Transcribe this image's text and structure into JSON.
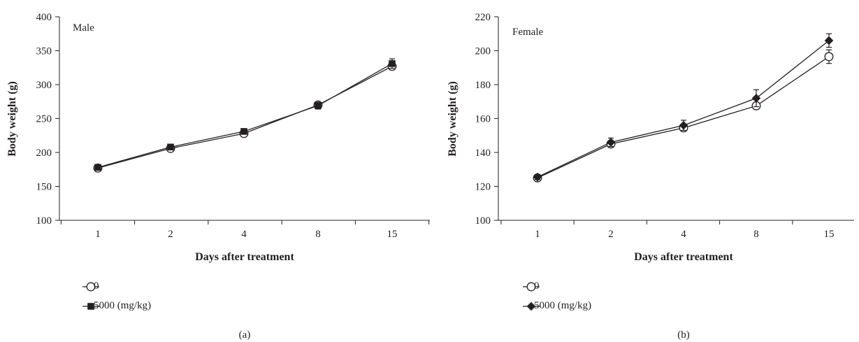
{
  "chart_data": [
    {
      "type": "line",
      "panel_label": "Male",
      "caption": "(a)",
      "categories": [
        "1",
        "2",
        "4",
        "8",
        "15"
      ],
      "xlabel": "Days after treatment",
      "ylabel": "Body weight (g)",
      "ylim": [
        100,
        400
      ],
      "yticks": [
        100,
        150,
        200,
        250,
        300,
        350,
        400
      ],
      "grid": false,
      "legend_position": "bottom-left",
      "series": [
        {
          "name": "0",
          "marker": "circle-open",
          "values": [
            177,
            206,
            228,
            270,
            327
          ],
          "errors": [
            2,
            3,
            3,
            4,
            5
          ]
        },
        {
          "name": "5000 (mg/kg)",
          "marker": "square-filled",
          "values": [
            178,
            208,
            231,
            269,
            331
          ],
          "errors": [
            2,
            3,
            3,
            5,
            7
          ]
        }
      ]
    },
    {
      "type": "line",
      "panel_label": "Female",
      "caption": "(b)",
      "categories": [
        "1",
        "2",
        "4",
        "8",
        "15"
      ],
      "xlabel": "Days after treatment",
      "ylabel": "Body weight (g)",
      "ylim": [
        100,
        220
      ],
      "yticks": [
        100,
        120,
        140,
        160,
        180,
        200,
        220
      ],
      "grid": false,
      "legend_position": "bottom-left",
      "series": [
        {
          "name": "0",
          "marker": "circle-open",
          "values": [
            125,
            145,
            154.5,
            167.5,
            196.5
          ],
          "errors": [
            1.5,
            2,
            2,
            2,
            4
          ]
        },
        {
          "name": "5000 (mg/kg)",
          "marker": "diamond-filled",
          "values": [
            125.5,
            146,
            156,
            172,
            206
          ],
          "errors": [
            1.5,
            2.5,
            3,
            5,
            4
          ]
        }
      ]
    }
  ]
}
